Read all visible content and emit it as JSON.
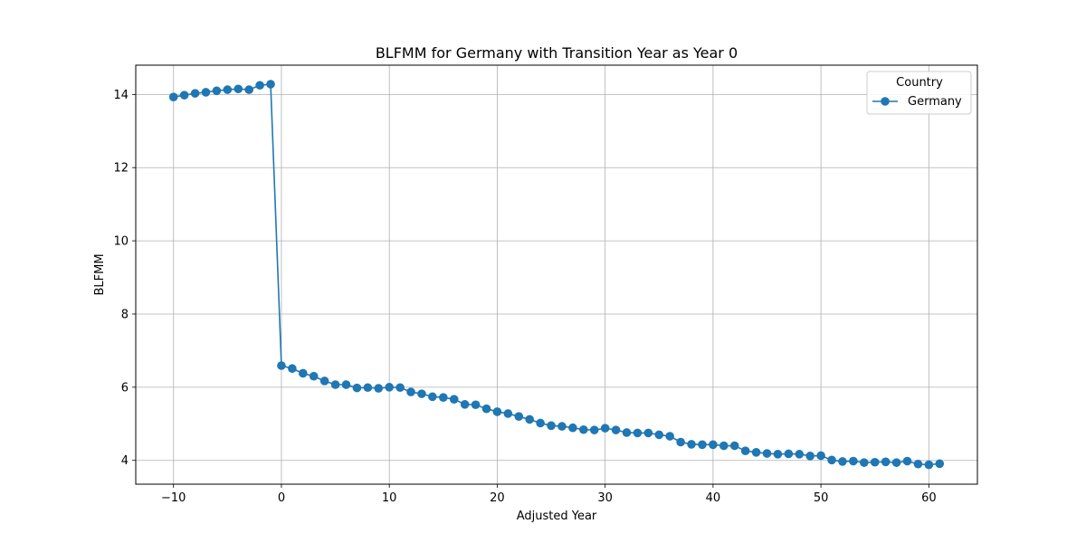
{
  "chart_data": {
    "type": "line",
    "title": "BLFMM for Germany with Transition Year as Year 0",
    "xlabel": "Adjusted Year",
    "ylabel": "BLFMM",
    "xlim": [
      -13.5,
      64.5
    ],
    "ylim": [
      3.35,
      14.8
    ],
    "xticks": [
      -10,
      0,
      10,
      20,
      30,
      40,
      50,
      60
    ],
    "xtick_labels": [
      "−10",
      "0",
      "10",
      "20",
      "30",
      "40",
      "50",
      "60"
    ],
    "yticks": [
      4,
      6,
      8,
      10,
      12,
      14
    ],
    "ytick_labels": [
      "4",
      "6",
      "8",
      "10",
      "12",
      "14"
    ],
    "grid": true,
    "legend": {
      "title": "Country",
      "placement": "top-right"
    },
    "series": [
      {
        "name": "Germany",
        "color": "#1f77b4",
        "marker": "circle",
        "x": [
          -10,
          -9,
          -8,
          -7,
          -6,
          -5,
          -4,
          -3,
          -2,
          -1,
          0,
          1,
          2,
          3,
          4,
          5,
          6,
          7,
          8,
          9,
          10,
          11,
          12,
          13,
          14,
          15,
          16,
          17,
          18,
          19,
          20,
          21,
          22,
          23,
          24,
          25,
          26,
          27,
          28,
          29,
          30,
          31,
          32,
          33,
          34,
          35,
          36,
          37,
          38,
          39,
          40,
          41,
          42,
          43,
          44,
          45,
          46,
          47,
          48,
          49,
          50,
          51,
          52,
          53,
          54,
          55,
          56,
          57,
          58,
          59,
          60,
          61
        ],
        "y": [
          13.93,
          13.98,
          14.03,
          14.06,
          14.1,
          14.13,
          14.15,
          14.13,
          14.25,
          14.28,
          6.59,
          6.51,
          6.38,
          6.3,
          6.17,
          6.07,
          6.07,
          5.98,
          5.99,
          5.97,
          6.0,
          5.99,
          5.87,
          5.82,
          5.74,
          5.72,
          5.67,
          5.53,
          5.52,
          5.41,
          5.33,
          5.28,
          5.2,
          5.12,
          5.02,
          4.95,
          4.93,
          4.89,
          4.84,
          4.83,
          4.88,
          4.83,
          4.76,
          4.75,
          4.75,
          4.7,
          4.66,
          4.5,
          4.44,
          4.43,
          4.43,
          4.4,
          4.4,
          4.26,
          4.22,
          4.19,
          4.17,
          4.18,
          4.17,
          4.12,
          4.13,
          4.01,
          3.97,
          3.98,
          3.94,
          3.95,
          3.96,
          3.94,
          3.98,
          3.9,
          3.88,
          3.91
        ]
      }
    ]
  }
}
